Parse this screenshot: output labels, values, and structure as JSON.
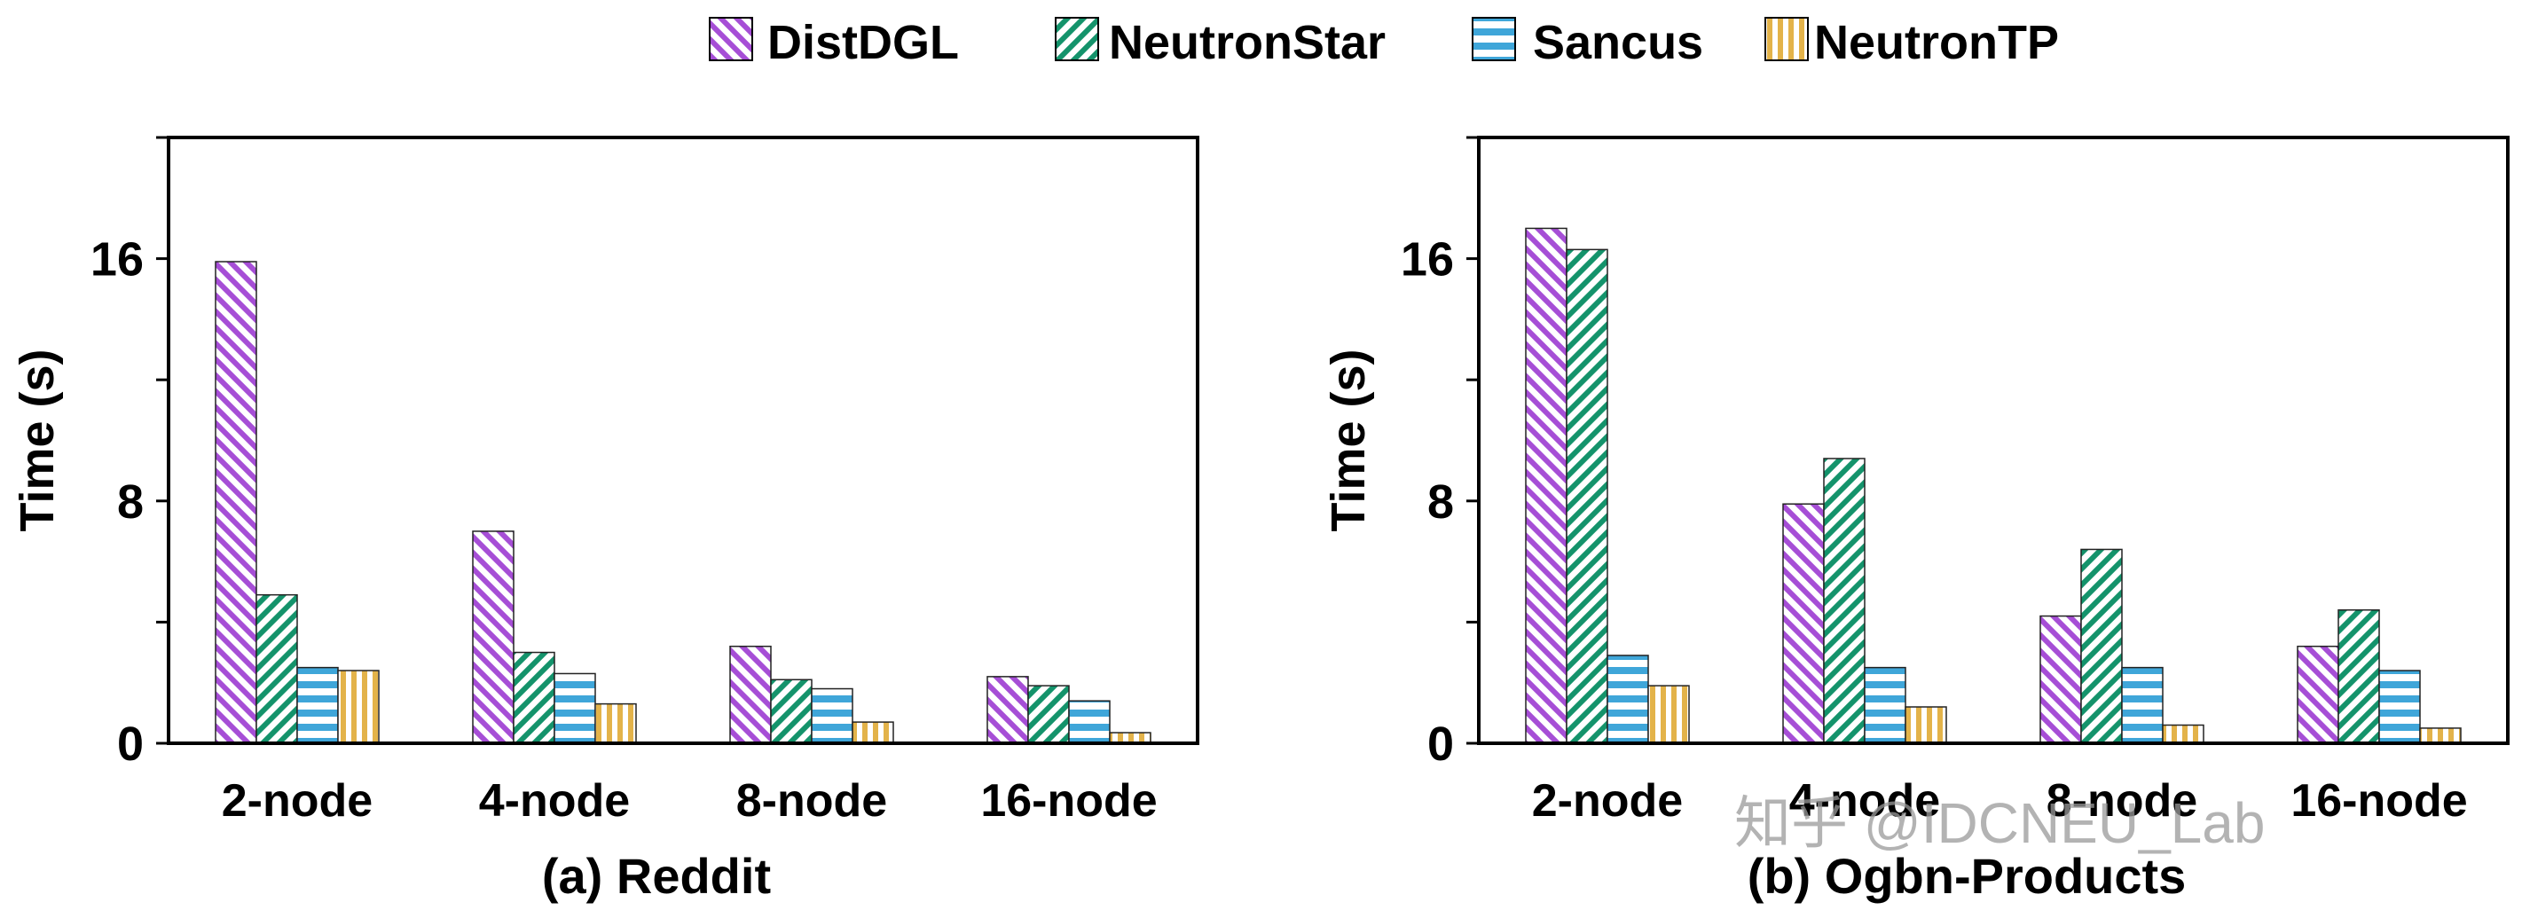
{
  "legend": [
    {
      "name": "DistDGL",
      "color": "#a64ed6",
      "pattern": "diag-right"
    },
    {
      "name": "NeutronStar",
      "color": "#14936b",
      "pattern": "diag-left"
    },
    {
      "name": "Sancus",
      "color": "#3fa6d9",
      "pattern": "horizontal"
    },
    {
      "name": "NeutronTP",
      "color": "#e3b34a",
      "pattern": "vertical"
    }
  ],
  "watermark": "知乎 @IDCNEU_Lab",
  "chart_data": [
    {
      "type": "bar",
      "title": "(a) Reddit",
      "xlabel": "",
      "ylabel": "Time (s)",
      "ylim": [
        0,
        20
      ],
      "yticks": [
        0,
        8,
        16
      ],
      "categories": [
        "2-node",
        "4-node",
        "8-node",
        "16-node"
      ],
      "series": [
        {
          "name": "DistDGL",
          "values": [
            15.9,
            7.0,
            3.2,
            2.2
          ]
        },
        {
          "name": "NeutronStar",
          "values": [
            4.9,
            3.0,
            2.1,
            1.9
          ]
        },
        {
          "name": "Sancus",
          "values": [
            2.5,
            2.3,
            1.8,
            1.4
          ]
        },
        {
          "name": "NeutronTP",
          "values": [
            2.4,
            1.3,
            0.7,
            0.35
          ]
        }
      ]
    },
    {
      "type": "bar",
      "title": "(b) Ogbn-Products",
      "xlabel": "",
      "ylabel": "Time (s)",
      "ylim": [
        0,
        20
      ],
      "yticks": [
        0,
        8,
        16
      ],
      "categories": [
        "2-node",
        "4-node",
        "8-node",
        "16-node"
      ],
      "series": [
        {
          "name": "DistDGL",
          "values": [
            17.0,
            7.9,
            4.2,
            3.2
          ]
        },
        {
          "name": "NeutronStar",
          "values": [
            16.3,
            9.4,
            6.4,
            4.4
          ]
        },
        {
          "name": "Sancus",
          "values": [
            2.9,
            2.5,
            2.5,
            2.4
          ]
        },
        {
          "name": "NeutronTP",
          "values": [
            1.9,
            1.2,
            0.6,
            0.5
          ]
        }
      ]
    }
  ]
}
